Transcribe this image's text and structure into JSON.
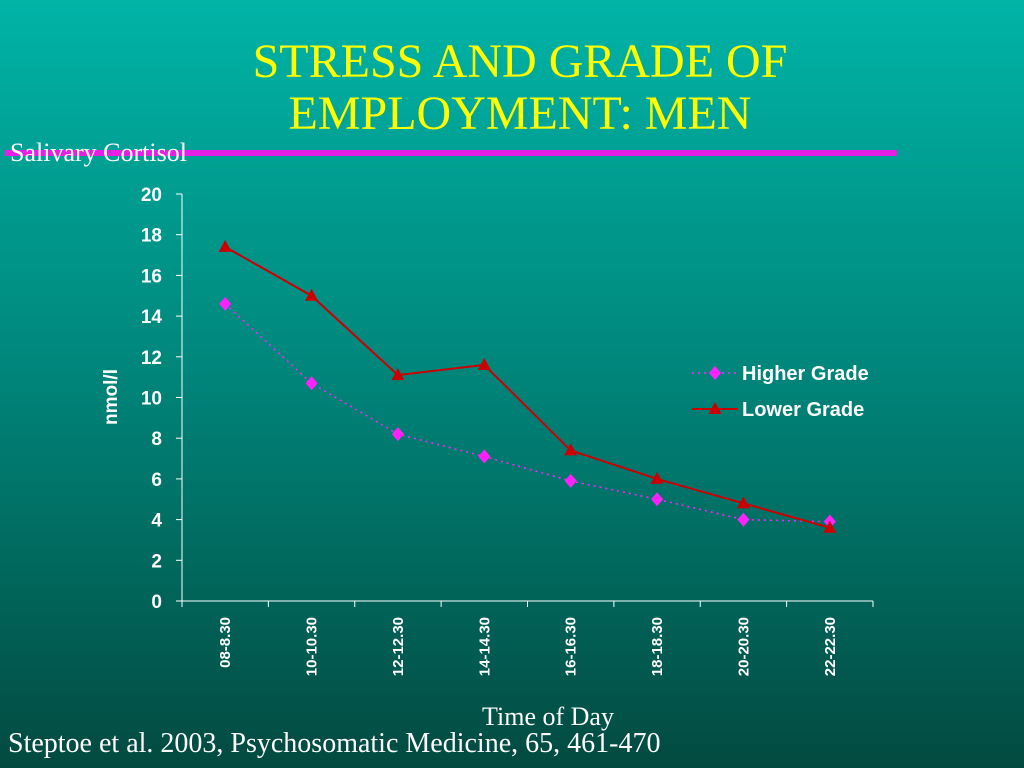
{
  "slide": {
    "title_line1": "STRESS AND GRADE OF",
    "title_line2": "EMPLOYMENT: MEN",
    "subtitle": "Salivary Cortisol",
    "source": "Steptoe et al. 2003, Psychosomatic Medicine, 65, 461-470"
  },
  "colors": {
    "title": "#ffff00",
    "rule": "#e61ee6",
    "higher_grade": "#ff22ff",
    "lower_grade": "#cc0000"
  },
  "chart_data": {
    "type": "line",
    "xlabel": "Time of Day",
    "ylabel": "nmol/l",
    "categories": [
      "08-8.30",
      "10-10.30",
      "12-12.30",
      "14-14.30",
      "16-16.30",
      "18-18.30",
      "20-20.30",
      "22-22.30"
    ],
    "ylim": [
      0,
      20
    ],
    "yticks": [
      0,
      2,
      4,
      6,
      8,
      10,
      12,
      14,
      16,
      18,
      20
    ],
    "grid": false,
    "legend_position": "right",
    "series": [
      {
        "name": "Higher Grade",
        "marker": "diamond",
        "line": "dotted",
        "values": [
          14.6,
          10.7,
          8.2,
          7.1,
          5.9,
          5.0,
          4.0,
          3.9
        ]
      },
      {
        "name": "Lower Grade",
        "marker": "triangle",
        "line": "solid",
        "values": [
          17.4,
          15.0,
          11.1,
          11.6,
          7.4,
          6.0,
          4.8,
          3.6
        ]
      }
    ]
  }
}
